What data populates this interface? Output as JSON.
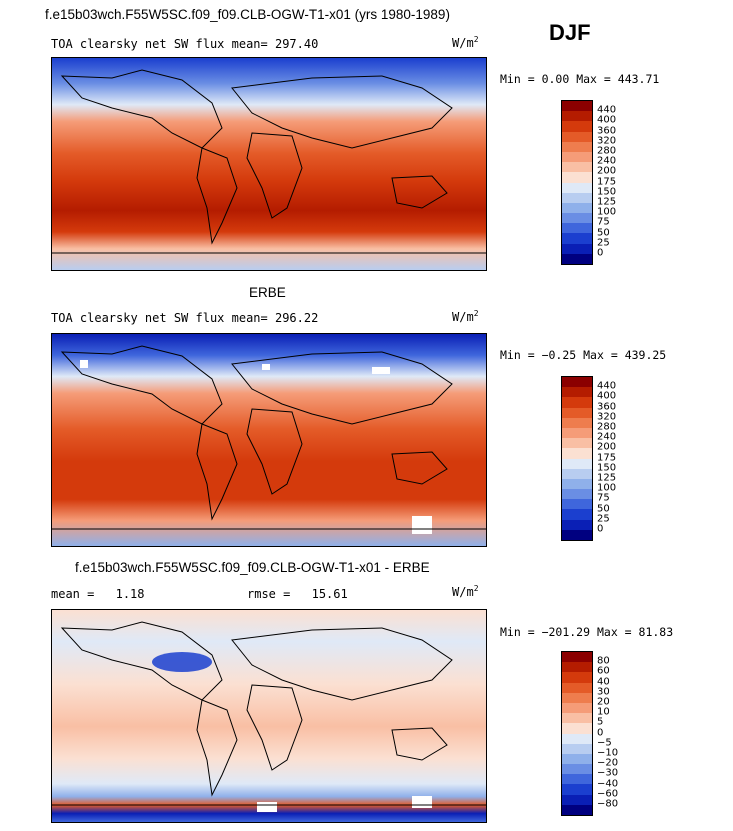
{
  "header": {
    "title": "f.e15b03wch.F55W5SC.f09_f09.CLB-OGW-T1-x01 (yrs 1980-1989)",
    "season": "DJF"
  },
  "panels": [
    {
      "name": "model",
      "title": "",
      "variable": "TOA clearsky net SW flux",
      "mean_label": "mean=",
      "mean_value": "297.40",
      "units": "W/m",
      "units_exp": "2",
      "min_label": "Min =",
      "min_value": "0.00",
      "max_label": "Max =",
      "max_value": "443.71",
      "colorbar_labels": [
        "440",
        "400",
        "360",
        "320",
        "280",
        "240",
        "200",
        "175",
        "150",
        "125",
        "100",
        "75",
        "50",
        "25",
        "0"
      ],
      "colorbar_colors": [
        "#8b0000",
        "#b41c00",
        "#d43a0c",
        "#e45b28",
        "#ee7d4e",
        "#f59c78",
        "#f9bfa4",
        "#fbe0d2",
        "#dfe9f7",
        "#b8cdf0",
        "#8fb0ea",
        "#6a8ee4",
        "#3f66dc",
        "#1b3fcf",
        "#0a1fb5",
        "#000080"
      ]
    },
    {
      "name": "obs",
      "title": "ERBE",
      "variable": "TOA clearsky net SW flux",
      "mean_label": "mean=",
      "mean_value": "296.22",
      "units": "W/m",
      "units_exp": "2",
      "min_label": "Min =",
      "min_value": "−0.25",
      "max_label": "Max =",
      "max_value": "439.25",
      "colorbar_labels": [
        "440",
        "400",
        "360",
        "320",
        "280",
        "240",
        "200",
        "175",
        "150",
        "125",
        "100",
        "75",
        "50",
        "25",
        "0"
      ],
      "colorbar_colors": [
        "#8b0000",
        "#b41c00",
        "#d43a0c",
        "#e45b28",
        "#ee7d4e",
        "#f59c78",
        "#f9bfa4",
        "#fbe0d2",
        "#dfe9f7",
        "#b8cdf0",
        "#8fb0ea",
        "#6a8ee4",
        "#3f66dc",
        "#1b3fcf",
        "#0a1fb5",
        "#000080"
      ]
    },
    {
      "name": "diff",
      "title": "f.e15b03wch.F55W5SC.f09_f09.CLB-OGW-T1-x01 - ERBE",
      "mean_label": "mean =",
      "mean_value": "1.18",
      "rmse_label": "rmse =",
      "rmse_value": "15.61",
      "units": "W/m",
      "units_exp": "2",
      "min_label": "Min =",
      "min_value": "−201.29",
      "max_label": "Max =",
      "max_value": "81.83",
      "colorbar_labels": [
        "80",
        "60",
        "40",
        "30",
        "20",
        "10",
        "5",
        "0",
        "−5",
        "−10",
        "−20",
        "−30",
        "−40",
        "−60",
        "−80"
      ],
      "colorbar_colors": [
        "#8b0000",
        "#b41c00",
        "#d43a0c",
        "#e45b28",
        "#ee7d4e",
        "#f59c78",
        "#f9bfa4",
        "#fbe0d2",
        "#dfe9f7",
        "#b8cdf0",
        "#8fb0ea",
        "#6a8ee4",
        "#3f66dc",
        "#1b3fcf",
        "#0a1fb5",
        "#000080"
      ]
    }
  ]
}
